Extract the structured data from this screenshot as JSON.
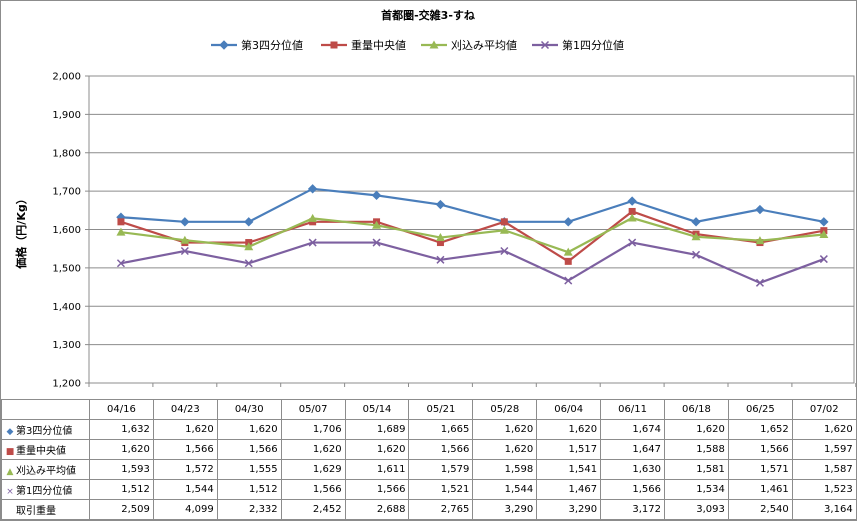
{
  "chart_data": {
    "type": "line",
    "title": "首都圏-交雑3-すね",
    "ylabel": "価格（円/Kg）",
    "xlabel": "",
    "categories": [
      "04/16",
      "04/23",
      "04/30",
      "05/07",
      "05/14",
      "05/21",
      "05/28",
      "06/04",
      "06/11",
      "06/18",
      "06/25",
      "07/02"
    ],
    "ylim": [
      1200,
      2000
    ],
    "yticks": [
      "1,200",
      "1,300",
      "1,400",
      "1,500",
      "1,600",
      "1,700",
      "1,800",
      "1,900",
      "2,000"
    ],
    "grid": true,
    "legend_position": "top",
    "series": [
      {
        "name": "第3四分位値",
        "color": "#4a7ebb",
        "marker": "diamond",
        "values": [
          1632,
          1620,
          1620,
          1706,
          1689,
          1665,
          1620,
          1620,
          1674,
          1620,
          1652,
          1620
        ]
      },
      {
        "name": "重量中央値",
        "color": "#be4b48",
        "marker": "square",
        "values": [
          1620,
          1566,
          1566,
          1620,
          1620,
          1566,
          1620,
          1517,
          1647,
          1588,
          1566,
          1597
        ]
      },
      {
        "name": "刈込み平均値",
        "color": "#98b954",
        "marker": "triangle",
        "values": [
          1593,
          1572,
          1555,
          1629,
          1611,
          1579,
          1598,
          1541,
          1630,
          1581,
          1571,
          1587
        ]
      },
      {
        "name": "第1四分位値",
        "color": "#7d60a0",
        "marker": "x",
        "values": [
          1512,
          1544,
          1512,
          1566,
          1566,
          1521,
          1544,
          1467,
          1566,
          1534,
          1461,
          1523
        ]
      }
    ],
    "table": {
      "rows": [
        {
          "label": "第3四分位値",
          "marker_glyph": "◆",
          "color": "#4a7ebb",
          "cells": [
            "1,632",
            "1,620",
            "1,620",
            "1,706",
            "1,689",
            "1,665",
            "1,620",
            "1,620",
            "1,674",
            "1,620",
            "1,652",
            "1,620"
          ]
        },
        {
          "label": "重量中央値",
          "marker_glyph": "■",
          "color": "#be4b48",
          "cells": [
            "1,620",
            "1,566",
            "1,566",
            "1,620",
            "1,620",
            "1,566",
            "1,620",
            "1,517",
            "1,647",
            "1,588",
            "1,566",
            "1,597"
          ]
        },
        {
          "label": "刈込み平均値",
          "marker_glyph": "▲",
          "color": "#98b954",
          "cells": [
            "1,593",
            "1,572",
            "1,555",
            "1,629",
            "1,611",
            "1,579",
            "1,598",
            "1,541",
            "1,630",
            "1,581",
            "1,571",
            "1,587"
          ]
        },
        {
          "label": "第1四分位値",
          "marker_glyph": "×",
          "color": "#7d60a0",
          "cells": [
            "1,512",
            "1,544",
            "1,512",
            "1,566",
            "1,566",
            "1,521",
            "1,544",
            "1,467",
            "1,566",
            "1,534",
            "1,461",
            "1,523"
          ]
        },
        {
          "label": "取引重量",
          "marker_glyph": "",
          "color": "#000000",
          "cells": [
            "2,509",
            "4,099",
            "2,332",
            "2,452",
            "2,688",
            "2,765",
            "3,290",
            "3,290",
            "3,172",
            "3,093",
            "2,540",
            "3,164"
          ]
        }
      ]
    }
  }
}
